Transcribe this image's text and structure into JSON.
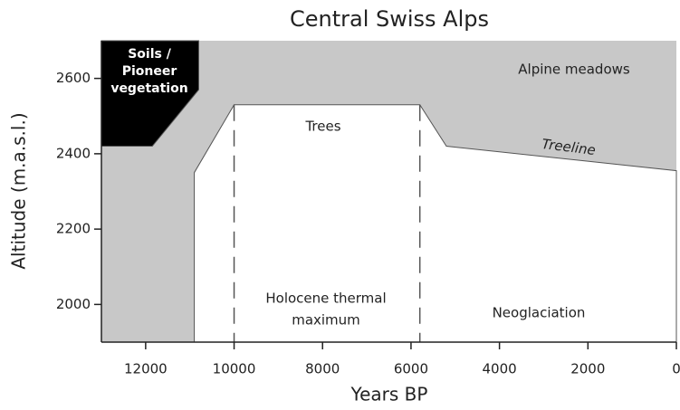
{
  "chart_data": {
    "type": "area",
    "title": "Central Swiss Alps",
    "x_label": "Years BP",
    "y_label": "Altitude (m.a.s.l.)",
    "background_color": "#c8c8c8",
    "xlim": [
      13000,
      0
    ],
    "ylim": [
      1900,
      2700
    ],
    "xticks": [
      12000,
      10000,
      8000,
      6000,
      4000,
      2000,
      0
    ],
    "yticks": [
      2000,
      2200,
      2400,
      2600
    ],
    "regions": [
      {
        "color": "#ffffff",
        "x": [
          10900,
          10900,
          10000,
          5800,
          5200,
          0,
          0
        ],
        "y": [
          1900,
          2350,
          2530,
          2530,
          2420,
          2355,
          1900
        ]
      },
      {
        "color": "#000000",
        "x": [
          13000,
          13000,
          11850,
          10800,
          10800
        ],
        "y": [
          2700,
          2420,
          2420,
          2570,
          2700
        ]
      }
    ],
    "vlines": [
      10000,
      5800
    ],
    "annotations": [
      {
        "text": [
          "Soils /",
          "Pioneer",
          "vegetation"
        ]
      },
      {
        "text": [
          "Alpine meadows"
        ]
      },
      {
        "text": [
          "Trees"
        ]
      },
      {
        "text": [
          "Treeline"
        ]
      },
      {
        "text": [
          "Holocene thermal",
          "maximum"
        ]
      },
      {
        "text": [
          "Neoglaciation"
        ]
      }
    ]
  }
}
